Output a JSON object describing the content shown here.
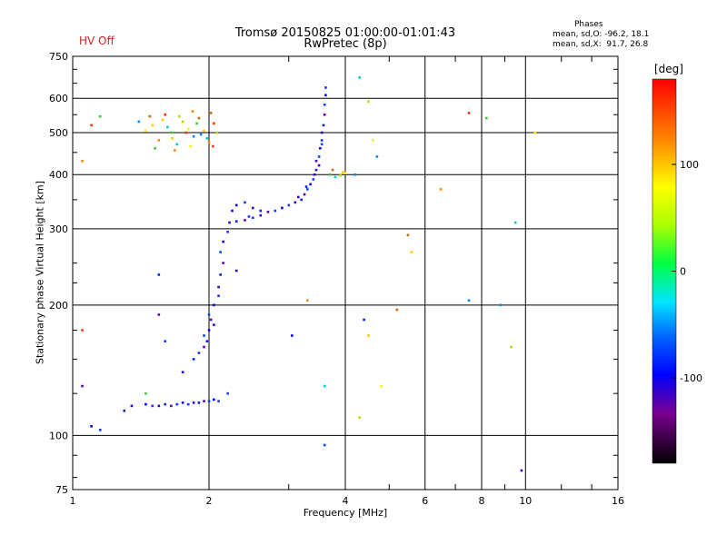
{
  "header": {
    "hv_status": "HV Off",
    "stats_heading": "Phases",
    "stats_line_o": "mean, sd,O: -96.2, 18.1",
    "stats_line_x": "mean, sd,X:  91.7, 26.8"
  },
  "chart_data": {
    "type": "scatter",
    "title": "Tromsø 20150825 01:00:00-01:01:43",
    "subtitle": "RwPretec (8p)",
    "xlabel": "Frequency [MHz]",
    "ylabel": "Stationary phase Virtual Height [km]",
    "x_scale": "log",
    "y_scale": "log",
    "xlim": [
      1,
      16
    ],
    "ylim": [
      75,
      750
    ],
    "x_ticks": [
      1,
      2,
      4,
      6,
      8,
      10,
      16
    ],
    "x_tick_labels": [
      "1",
      "2",
      "4",
      "6",
      "8",
      "10",
      "16"
    ],
    "y_ticks": [
      75,
      100,
      200,
      300,
      400,
      500,
      600,
      750
    ],
    "y_tick_labels": [
      "75",
      "100",
      "200",
      "300",
      "400",
      "500",
      "600",
      "750"
    ],
    "grid": true,
    "colorbar": {
      "label": "[deg]",
      "range": [
        -180,
        180
      ],
      "ticks": [
        100,
        0,
        -100
      ],
      "tick_labels": [
        "100",
        "0",
        "-100"
      ]
    },
    "series": [
      {
        "component": "O",
        "points": [
          [
            1.45,
            118
          ],
          [
            1.5,
            117
          ],
          [
            1.55,
            117
          ],
          [
            1.6,
            118
          ],
          [
            1.65,
            117
          ],
          [
            1.7,
            118
          ],
          [
            1.75,
            119
          ],
          [
            1.8,
            118
          ],
          [
            1.85,
            119
          ],
          [
            1.9,
            119
          ],
          [
            1.95,
            120
          ],
          [
            2.0,
            120
          ],
          [
            2.05,
            121
          ],
          [
            2.1,
            120
          ],
          [
            1.75,
            140
          ],
          [
            1.85,
            150
          ],
          [
            1.95,
            160
          ],
          [
            1.95,
            170
          ],
          [
            2.0,
            175
          ],
          [
            1.9,
            155
          ],
          [
            2.05,
            180
          ],
          [
            1.98,
            165
          ],
          [
            2.02,
            185
          ],
          [
            2.0,
            190
          ],
          [
            2.05,
            200
          ],
          [
            2.1,
            210
          ],
          [
            2.1,
            220
          ],
          [
            2.12,
            235
          ],
          [
            2.15,
            250
          ],
          [
            2.12,
            265
          ],
          [
            2.15,
            280
          ],
          [
            2.2,
            295
          ],
          [
            2.22,
            310
          ],
          [
            2.3,
            312
          ],
          [
            2.4,
            314
          ],
          [
            2.5,
            318
          ],
          [
            2.3,
            340
          ],
          [
            2.4,
            345
          ],
          [
            2.5,
            335
          ],
          [
            2.6,
            330
          ],
          [
            2.7,
            328
          ],
          [
            2.8,
            330
          ],
          [
            2.9,
            335
          ],
          [
            3.0,
            340
          ],
          [
            3.1,
            345
          ],
          [
            3.2,
            350
          ],
          [
            3.25,
            360
          ],
          [
            3.3,
            370
          ],
          [
            3.35,
            380
          ],
          [
            3.4,
            390
          ],
          [
            3.42,
            400
          ],
          [
            3.45,
            410
          ],
          [
            3.5,
            420
          ],
          [
            3.5,
            440
          ],
          [
            3.52,
            460
          ],
          [
            3.55,
            480
          ],
          [
            3.55,
            500
          ],
          [
            3.58,
            520
          ],
          [
            3.6,
            550
          ],
          [
            3.6,
            580
          ],
          [
            3.62,
            610
          ],
          [
            3.62,
            635
          ],
          [
            3.15,
            355
          ],
          [
            3.28,
            375
          ],
          [
            3.45,
            430
          ],
          [
            3.55,
            470
          ],
          [
            2.25,
            330
          ],
          [
            2.45,
            320
          ],
          [
            2.6,
            322
          ],
          [
            1.55,
            235
          ],
          [
            1.55,
            190
          ],
          [
            1.6,
            165
          ],
          [
            1.1,
            105
          ],
          [
            1.15,
            103
          ],
          [
            1.35,
            117
          ],
          [
            1.3,
            114
          ],
          [
            1.05,
            130
          ],
          [
            3.6,
            95
          ],
          [
            3.05,
            170
          ],
          [
            2.2,
            125
          ],
          [
            2.3,
            240
          ],
          [
            4.4,
            185
          ],
          [
            9.8,
            83
          ]
        ]
      },
      {
        "component": "X",
        "points": [
          [
            1.5,
            520
          ],
          [
            1.55,
            480
          ],
          [
            1.6,
            550
          ],
          [
            1.65,
            500
          ],
          [
            1.7,
            470
          ],
          [
            1.75,
            530
          ],
          [
            1.8,
            510
          ],
          [
            1.85,
            490
          ],
          [
            1.9,
            540
          ],
          [
            1.95,
            505
          ],
          [
            2.0,
            475
          ],
          [
            2.05,
            525
          ],
          [
            1.52,
            460
          ],
          [
            1.62,
            515
          ],
          [
            1.72,
            545
          ],
          [
            1.82,
            465
          ],
          [
            1.92,
            495
          ],
          [
            2.02,
            555
          ],
          [
            1.58,
            535
          ],
          [
            1.68,
            455
          ],
          [
            1.78,
            500
          ],
          [
            1.88,
            525
          ],
          [
            1.98,
            485
          ],
          [
            2.08,
            500
          ],
          [
            1.45,
            505
          ],
          [
            1.4,
            530
          ],
          [
            1.48,
            545
          ],
          [
            1.66,
            485
          ],
          [
            1.84,
            560
          ],
          [
            2.04,
            465
          ],
          [
            3.7,
            400
          ],
          [
            3.8,
            395
          ],
          [
            3.9,
            398
          ],
          [
            4.0,
            403
          ],
          [
            4.2,
            400
          ],
          [
            3.75,
            410
          ],
          [
            3.95,
            405
          ],
          [
            1.05,
            430
          ],
          [
            1.1,
            520
          ],
          [
            1.15,
            545
          ],
          [
            4.3,
            670
          ],
          [
            4.5,
            590
          ],
          [
            4.6,
            480
          ],
          [
            4.7,
            440
          ],
          [
            5.5,
            290
          ],
          [
            5.6,
            265
          ],
          [
            6.5,
            370
          ],
          [
            7.5,
            555
          ],
          [
            8.2,
            540
          ],
          [
            9.5,
            310
          ],
          [
            9.3,
            160
          ],
          [
            10.5,
            500
          ],
          [
            7.5,
            205
          ],
          [
            5.2,
            195
          ],
          [
            4.5,
            170
          ],
          [
            3.3,
            205
          ],
          [
            1.05,
            175
          ],
          [
            1.45,
            125
          ],
          [
            3.6,
            130
          ],
          [
            4.3,
            110
          ],
          [
            4.8,
            130
          ],
          [
            8.8,
            200
          ]
        ]
      }
    ],
    "annotations": []
  }
}
